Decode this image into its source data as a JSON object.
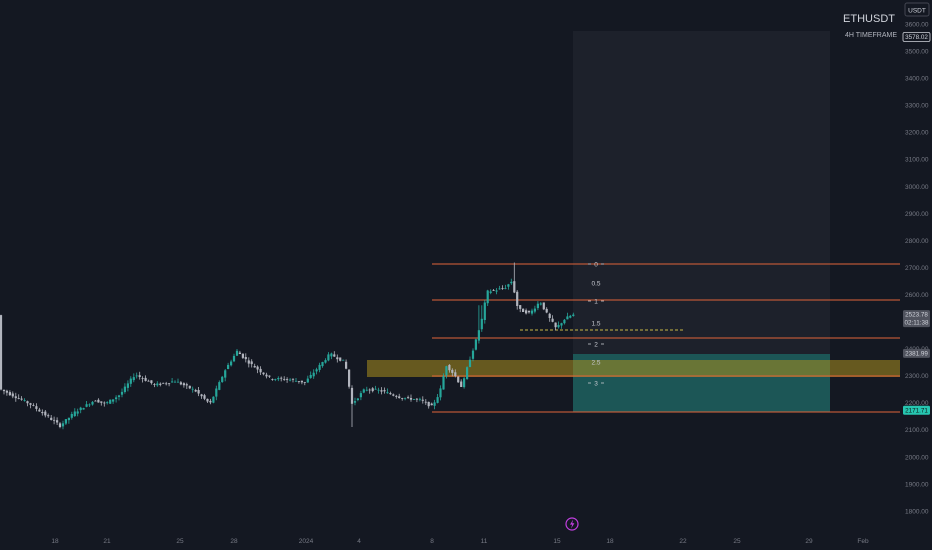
{
  "header": {
    "symbol": "ETHUSDT",
    "timeframe": "4H TIMEFRAME",
    "currency_button": "USDT"
  },
  "price_axis": {
    "labels": [
      "1800.00",
      "1900.00",
      "2000.00",
      "2100.00",
      "2200.00",
      "2300.00",
      "2400.00",
      "2500.00",
      "2600.00",
      "2700.00",
      "2800.00",
      "2900.00",
      "3000.00",
      "3100.00",
      "3200.00",
      "3300.00",
      "3400.00",
      "3500.00",
      "3600.00"
    ],
    "tags": [
      {
        "value": 3578.02,
        "text": "3578.02",
        "kind": "top"
      },
      {
        "value": 2523.78,
        "text": "2523.78",
        "sub": "02:11:38",
        "kind": "last"
      },
      {
        "value": 2381.99,
        "text": "2381.99",
        "kind": "entry"
      },
      {
        "value": 2171.71,
        "text": "2171.71",
        "kind": "target"
      }
    ]
  },
  "time_axis": {
    "labels": [
      "18",
      "21",
      "25",
      "28",
      "2024",
      "4",
      "8",
      "11",
      "15",
      "18",
      "22",
      "25",
      "29",
      "Feb"
    ]
  },
  "colors": {
    "background": "#141822",
    "bull": "#26a69a",
    "bear": "#b2b5be",
    "level_line": "#e0643a",
    "demand_zone": "#a98f1e",
    "short_target_zone": "#1f6b68",
    "short_risk_zone": "#222630",
    "axis_text": "#787b86",
    "event_icon": "#c13fe0"
  },
  "chart_data": {
    "type": "candlestick",
    "series": [
      {
        "name": "ETHUSDT",
        "timeframe": "4H"
      }
    ],
    "y_range": [
      1760,
      3625
    ],
    "x_ticks": [
      "18",
      "21",
      "25",
      "28",
      "2024",
      "4",
      "8",
      "11",
      "15",
      "18",
      "22",
      "25",
      "29",
      "Feb"
    ],
    "fib_retracement": {
      "levels": [
        {
          "label": "0",
          "price": 2718
        },
        {
          "label": "0.5",
          "price": 2640
        },
        {
          "label": "1",
          "price": 2578
        },
        {
          "label": "1.5",
          "price": 2493
        },
        {
          "label": "2",
          "price": 2425
        },
        {
          "label": "2.5",
          "price": 2343
        },
        {
          "label": "3",
          "price": 2270
        }
      ]
    },
    "horizontal_levels": [
      2718,
      2578,
      2425,
      2298,
      2171.71
    ],
    "demand_zone": {
      "from": 2303,
      "to": 2350
    },
    "short_position": {
      "entry": 2381.99,
      "target": 2171.71,
      "stop": 3578.02
    },
    "last_price": 2523.78,
    "countdown": "02:11:38",
    "dashed_level": 2475
  }
}
